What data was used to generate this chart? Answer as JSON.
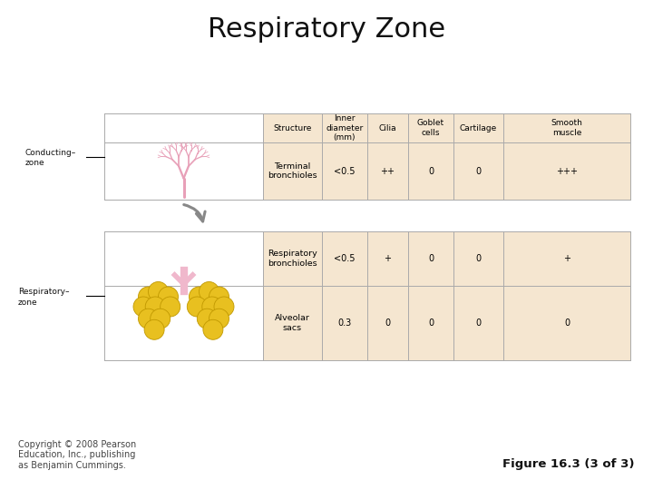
{
  "title": "Respiratory Zone",
  "title_fontsize": 22,
  "background_color": "#ffffff",
  "copyright_text": "Copyright © 2008 Pearson\nEducation, Inc., publishing\nas Benjamin Cummings.",
  "figure_text": "Figure 16.3 (3 of 3)",
  "copyright_fontsize": 7,
  "figure_fontsize": 9.5,
  "table_bg": "#f5e6d0",
  "table_line_color": "#aaaaaa",
  "col_headers": [
    "Structure",
    "Inner\ndiameter\n(mm)",
    "Cilia",
    "Goblet\ncells",
    "Cartilage",
    "Smooth\nmuscle"
  ],
  "row1_label": "Terminal\nbronchioles",
  "row2_label": "Respiratory\nbronchioles",
  "row3_label": "Alveolar\nsacs",
  "row1_data": [
    "<0.5",
    "++",
    "0",
    "0",
    "+++"
  ],
  "row2_data": [
    "<0.5",
    "+",
    "0",
    "0",
    "+"
  ],
  "row3_data": [
    "0.3",
    "0",
    "0",
    "0",
    "0"
  ],
  "conducting_label": "Conducting–\nzone",
  "respiratory_label": "Respiratory–\nzone",
  "pink": "#e8a0b8",
  "pink_light": "#f0b8cc",
  "alv_color": "#e8c020",
  "alv_edge": "#c09800",
  "gray_arrow": "#888888"
}
